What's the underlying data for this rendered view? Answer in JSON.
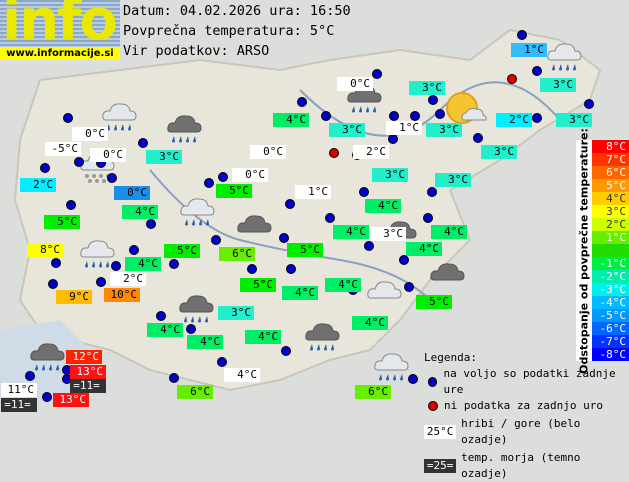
{
  "logo": {
    "text": "info",
    "url": "www.informacije.si"
  },
  "header": {
    "date_line": "Datum: 04.02.2026 ura: 16:50",
    "avg_line": "Povprečna temperatura: 5°C",
    "source_line": "Vir podatkov: ARSO"
  },
  "colors": {
    "w": "#ffffff",
    "dark": "#333333",
    "c0": "#1a8fe8",
    "c1": "#33bbff",
    "c2": "#00eeff",
    "c3": "#22eecc",
    "c4": "#00ee66",
    "c5": "#00ee00",
    "c6": "#66ee00",
    "c8": "#ffff00",
    "c9": "#ffbb00",
    "c10": "#ff8800",
    "c12": "#ff2200",
    "c13": "#ff1111",
    "station": "#0000cc",
    "nodata": "#dd0000"
  },
  "stations": [
    {
      "t": "0°C",
      "c": "w"
    },
    {
      "t": "-5°C",
      "c": "w"
    },
    {
      "t": "0°C",
      "c": "w"
    },
    {
      "t": "0°C",
      "c": "w"
    },
    {
      "t": "0°C",
      "c": "w"
    },
    {
      "t": "2°C",
      "c": "w"
    },
    {
      "t": "0°C",
      "c": "w"
    },
    {
      "t": "1°C",
      "c": "w"
    },
    {
      "t": "2°C",
      "c": "w"
    },
    {
      "t": "1°C",
      "c": "w"
    },
    {
      "t": "3°C",
      "c": "w"
    },
    {
      "t": "4°C",
      "c": "w"
    },
    {
      "t": "11°C",
      "c": "w"
    },
    {
      "t": "2°C",
      "c": "c2"
    },
    {
      "t": "3°C",
      "c": "c3"
    },
    {
      "t": "0°C",
      "c": "c0"
    },
    {
      "t": "5°C",
      "c": "c5"
    },
    {
      "t": "4°C",
      "c": "c4"
    },
    {
      "t": "5°C",
      "c": "c5"
    },
    {
      "t": "8°C",
      "c": "c8"
    },
    {
      "t": "4°C",
      "c": "c4"
    },
    {
      "t": "5°C",
      "c": "c5"
    },
    {
      "t": "6°C",
      "c": "c6"
    },
    {
      "t": "9°C",
      "c": "c9"
    },
    {
      "t": "10°C",
      "c": "c10"
    },
    {
      "t": "5°C",
      "c": "c5"
    },
    {
      "t": "4°C",
      "c": "c4"
    },
    {
      "t": "3°C",
      "c": "c3"
    },
    {
      "t": "4°C",
      "c": "c4"
    },
    {
      "t": "4°C",
      "c": "c4"
    },
    {
      "t": "4°C",
      "c": "c4"
    },
    {
      "t": "4°C",
      "c": "c4"
    },
    {
      "t": "3°C",
      "c": "c3"
    },
    {
      "t": "3°C",
      "c": "c3"
    },
    {
      "t": "3°C",
      "c": "c3"
    },
    {
      "t": "1°C",
      "c": "c1"
    },
    {
      "t": "3°C",
      "c": "c3"
    },
    {
      "t": "2°C",
      "c": "c2"
    },
    {
      "t": "3°C",
      "c": "c3"
    },
    {
      "t": "3°C",
      "c": "c3"
    },
    {
      "t": "3°C",
      "c": "c3"
    },
    {
      "t": "3°C",
      "c": "c3"
    },
    {
      "t": "4°C",
      "c": "c4"
    },
    {
      "t": "4°C",
      "c": "c4"
    },
    {
      "t": "4°C",
      "c": "c4"
    },
    {
      "t": "4°C",
      "c": "c4"
    },
    {
      "t": "5°C",
      "c": "c5"
    },
    {
      "t": "4°C",
      "c": "c4"
    },
    {
      "t": "5°C",
      "c": "c5"
    },
    {
      "t": "4°C",
      "c": "c4"
    },
    {
      "t": "6°C",
      "c": "c6"
    },
    {
      "t": "6°C",
      "c": "c6"
    },
    {
      "t": "12°C",
      "c": "c12"
    },
    {
      "t": "13°C",
      "c": "c13"
    },
    {
      "t": "=11=",
      "c": "dark"
    },
    {
      "t": "=11=",
      "c": "dark"
    },
    {
      "t": "13°C",
      "c": "c13"
    }
  ],
  "weather_icons": [
    "rain-cloud-light",
    "rain-cloud-dark",
    "snow-cloud",
    "rain-cloud-light",
    "cloud-dark",
    "rain-cloud-light",
    "rain-cloud-dark",
    "rain-cloud-dark",
    "cloud-light",
    "rain-cloud-light",
    "rain-cloud-dark",
    "rain-cloud-dark",
    "sun-cloud",
    "rain-cloud-light",
    "cloud-dark",
    "cloud-dark"
  ],
  "scale": {
    "title": "Odstopanje od povprečne temperature:",
    "rows": [
      {
        "t": "8°C",
        "c": "#ff0000"
      },
      {
        "t": "7°C",
        "c": "#ff3300"
      },
      {
        "t": "6°C",
        "c": "#ff6600"
      },
      {
        "t": "5°C",
        "c": "#ff9900"
      },
      {
        "t": "4°C",
        "c": "#ffcc00"
      },
      {
        "t": "3°C",
        "c": "#ffff00"
      },
      {
        "t": "2°C",
        "c": "#ccff00"
      },
      {
        "t": "1°C",
        "c": "#66ee00"
      },
      {
        "t": "",
        "c": "#22dd00"
      },
      {
        "t": "-1°C",
        "c": "#00ee44"
      },
      {
        "t": "-2°C",
        "c": "#00eeaa"
      },
      {
        "t": "-3°C",
        "c": "#00eeee"
      },
      {
        "t": "-4°C",
        "c": "#00bbff"
      },
      {
        "t": "-5°C",
        "c": "#0099ff"
      },
      {
        "t": "-6°C",
        "c": "#0066ff"
      },
      {
        "t": "-7°C",
        "c": "#0033ff"
      },
      {
        "t": "-8°C",
        "c": "#0000ff"
      }
    ]
  },
  "legend": {
    "title": "Legenda:",
    "available": "na voljo so podatki zadnje ure",
    "no_data": "ni podatka za zadnjo uro",
    "mountain_sample": "25°C",
    "mountain_text": "hribi / gore (belo ozadje)",
    "sea_sample": "=25=",
    "sea_text": "temp. morja (temno ozadje)"
  }
}
